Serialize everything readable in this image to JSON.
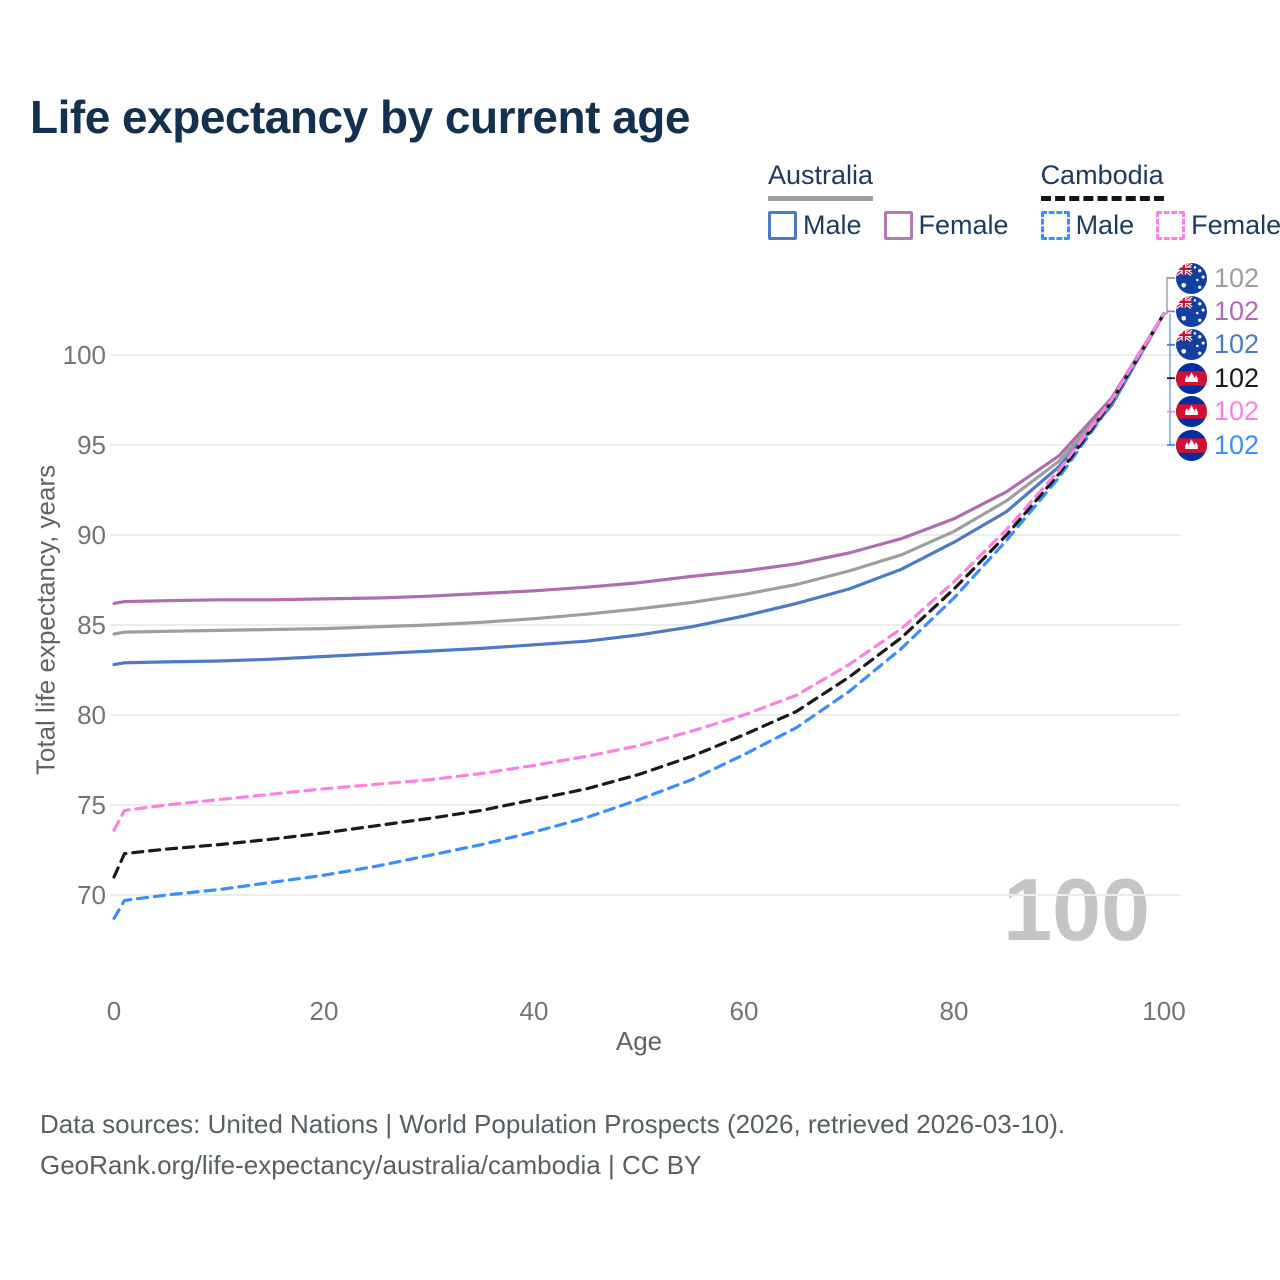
{
  "title": "Life expectancy by current age",
  "legend": {
    "groups": [
      {
        "country": "Australia",
        "underline_style": "solid",
        "underline_color": "#9e9e9e",
        "items": [
          {
            "label": "Male",
            "color": "#4d7ac2",
            "dash": false
          },
          {
            "label": "Female",
            "color": "#b47ab4",
            "dash": false
          }
        ]
      },
      {
        "country": "Cambodia",
        "underline_style": "dashed",
        "underline_color": "#151515",
        "items": [
          {
            "label": "Male",
            "color": "#3b8eff",
            "dash": true
          },
          {
            "label": "Female",
            "color": "#ff80e0",
            "dash": true
          }
        ]
      }
    ]
  },
  "watermark": "100",
  "end_labels": [
    {
      "flag": "australia",
      "value": "102",
      "color": "#9e9e9e"
    },
    {
      "flag": "australia",
      "value": "102",
      "color": "#b06cb0"
    },
    {
      "flag": "australia",
      "value": "102",
      "color": "#4d7ac2"
    },
    {
      "flag": "cambodia",
      "value": "102",
      "color": "#1a1a1a"
    },
    {
      "flag": "cambodia",
      "value": "102",
      "color": "#ff80e0"
    },
    {
      "flag": "cambodia",
      "value": "102",
      "color": "#3b8eff"
    }
  ],
  "footer": {
    "line1": "Data sources: United Nations | World Population Prospects (2026, retrieved 2026-03-10).",
    "line2": "GeoRank.org/life-expectancy/australia/cambodia | CC BY"
  },
  "chart_data": {
    "type": "line",
    "title": "Life expectancy by current age",
    "xlabel": "Age",
    "ylabel": "Total life expectancy, years",
    "xlim": [
      0,
      100
    ],
    "ylim": [
      67.5,
      103.5
    ],
    "x_ticks": [
      0,
      20,
      40,
      60,
      80,
      100
    ],
    "y_ticks": [
      70,
      75,
      80,
      85,
      90,
      95,
      100
    ],
    "grid": "horizontal-only",
    "legend_position": "top-right",
    "x": [
      0,
      1,
      5,
      10,
      15,
      20,
      25,
      30,
      35,
      40,
      45,
      50,
      55,
      60,
      65,
      70,
      75,
      80,
      85,
      90,
      95,
      100
    ],
    "series": [
      {
        "name": "Australia Male",
        "country": "Australia",
        "sex": "Male",
        "style": "solid",
        "color": "#4d7ac2",
        "values": [
          82.8,
          82.9,
          82.95,
          83.0,
          83.1,
          83.25,
          83.4,
          83.55,
          83.7,
          83.9,
          84.1,
          84.45,
          84.9,
          85.5,
          86.2,
          87.0,
          88.1,
          89.6,
          91.3,
          93.8,
          97.2,
          102.3
        ]
      },
      {
        "name": "Australia Both sexes",
        "country": "Australia",
        "sex": "Both",
        "style": "solid",
        "color": "#9e9e9e",
        "values": [
          84.5,
          84.6,
          84.65,
          84.7,
          84.75,
          84.8,
          84.9,
          85.0,
          85.15,
          85.35,
          85.6,
          85.9,
          86.25,
          86.7,
          87.25,
          88.0,
          88.9,
          90.2,
          91.9,
          94.1,
          97.4,
          102.3
        ]
      },
      {
        "name": "Australia Female",
        "country": "Australia",
        "sex": "Female",
        "style": "solid",
        "color": "#b06cb0",
        "values": [
          86.2,
          86.3,
          86.35,
          86.4,
          86.4,
          86.45,
          86.5,
          86.6,
          86.75,
          86.9,
          87.1,
          87.35,
          87.7,
          88.0,
          88.4,
          89.0,
          89.8,
          90.9,
          92.4,
          94.4,
          97.6,
          102.3
        ]
      },
      {
        "name": "Cambodia Male",
        "country": "Cambodia",
        "sex": "Male",
        "style": "dashed",
        "color": "#3b8eff",
        "values": [
          68.7,
          69.7,
          70.0,
          70.3,
          70.7,
          71.1,
          71.6,
          72.2,
          72.8,
          73.5,
          74.3,
          75.3,
          76.4,
          77.8,
          79.3,
          81.3,
          83.7,
          86.5,
          89.7,
          93.2,
          97.3,
          102.3
        ]
      },
      {
        "name": "Cambodia Both sexes",
        "country": "Cambodia",
        "sex": "Both",
        "style": "dashed",
        "color": "#1a1a1a",
        "values": [
          71.0,
          72.3,
          72.55,
          72.8,
          73.1,
          73.45,
          73.85,
          74.25,
          74.7,
          75.3,
          75.9,
          76.7,
          77.7,
          78.9,
          80.2,
          82.1,
          84.3,
          87.0,
          90.0,
          93.4,
          97.4,
          102.3
        ]
      },
      {
        "name": "Cambodia Female",
        "country": "Cambodia",
        "sex": "Female",
        "style": "dashed",
        "color": "#ff80e0",
        "values": [
          73.6,
          74.7,
          75.0,
          75.3,
          75.6,
          75.9,
          76.15,
          76.4,
          76.75,
          77.2,
          77.7,
          78.3,
          79.1,
          80.0,
          81.1,
          82.8,
          84.8,
          87.4,
          90.3,
          93.6,
          97.5,
          102.3
        ]
      }
    ],
    "end_value_labels": [
      102,
      102,
      102,
      102,
      102,
      102
    ]
  }
}
